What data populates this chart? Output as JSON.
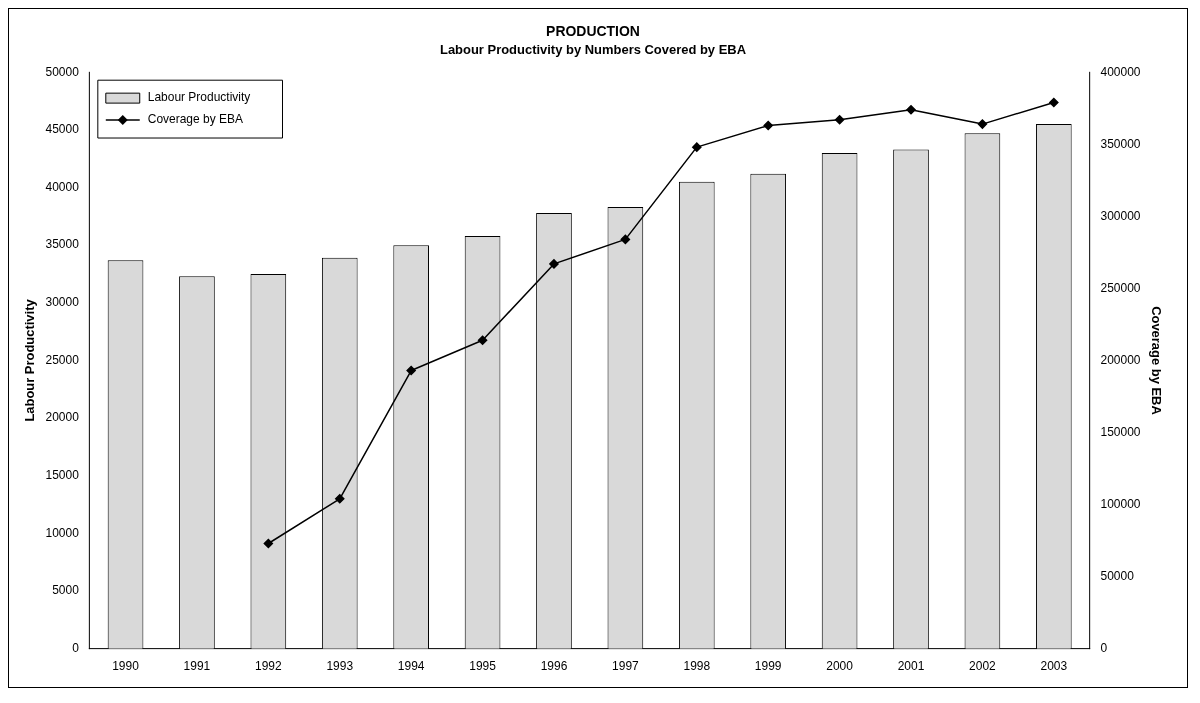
{
  "chart_data": {
    "type": "bar",
    "title": "PRODUCTION",
    "subtitle": "Labour Productivity by Numbers Covered by EBA",
    "ylabel": "Labour Productivity",
    "y2label": "Coverage by EBA",
    "categories": [
      "1990",
      "1991",
      "1992",
      "1993",
      "1994",
      "1995",
      "1996",
      "1997",
      "1998",
      "1999",
      "2000",
      "2001",
      "2002",
      "2003"
    ],
    "series": [
      {
        "name": "Labour Productivity",
        "color": "#d9d9d9",
        "values": [
          33700,
          32300,
          32500,
          33900,
          35000,
          35800,
          37800,
          38300,
          40500,
          41200,
          43000,
          43300,
          44700,
          45500
        ]
      },
      {
        "name": "Coverage by EBA",
        "type": "line",
        "axis": "y2",
        "color": "#000000",
        "marker": "diamond",
        "values": [
          null,
          null,
          73000,
          104000,
          193000,
          214000,
          267000,
          284000,
          348000,
          363000,
          367000,
          374000,
          364000,
          379000
        ]
      }
    ],
    "ylim": [
      0,
      50000
    ],
    "yticks": [
      0,
      5000,
      10000,
      15000,
      20000,
      25000,
      30000,
      35000,
      40000,
      45000,
      50000
    ],
    "y2lim": [
      0,
      400000
    ],
    "y2ticks": [
      0,
      50000,
      100000,
      150000,
      200000,
      250000,
      300000,
      350000,
      400000
    ],
    "grid": false,
    "legend": "top left"
  }
}
